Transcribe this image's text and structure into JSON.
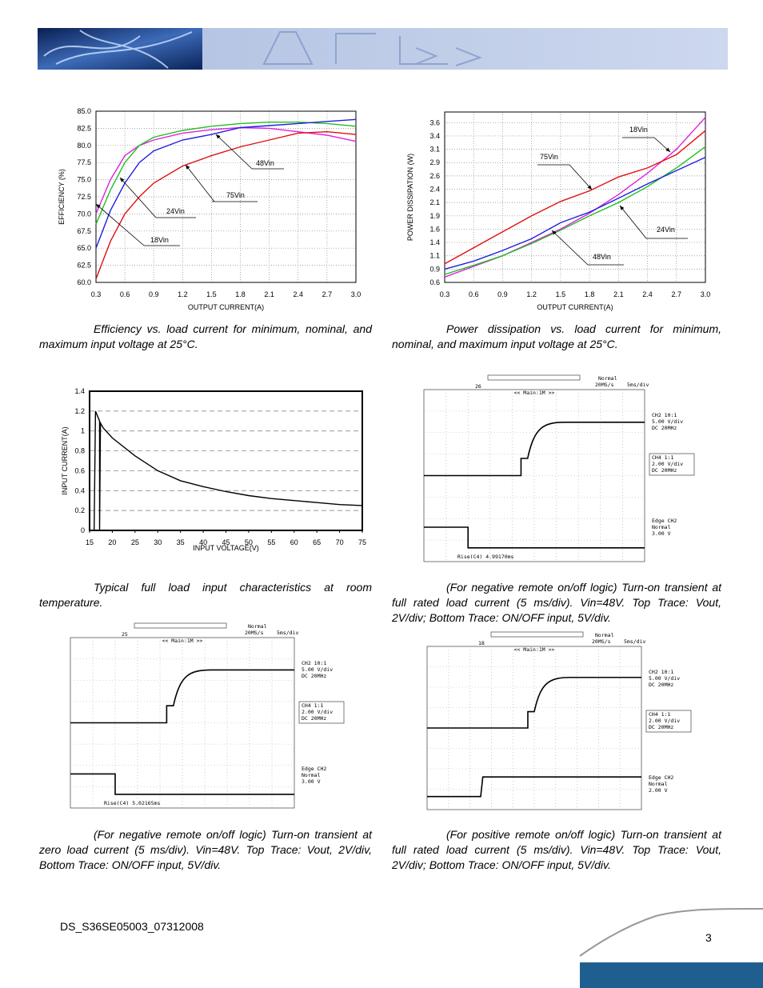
{
  "chart_data": [
    {
      "type": "line",
      "ylabel": "EFFICIENCY (%)",
      "xlabel": "OUTPUT CURRENT(A)",
      "x": [
        0.3,
        0.45,
        0.6,
        0.75,
        0.9,
        1.2,
        1.5,
        1.8,
        2.1,
        2.4,
        2.7,
        3.0
      ],
      "xlim": [
        0.3,
        3.0
      ],
      "xticks": [
        0.3,
        0.6,
        0.9,
        1.2,
        1.5,
        1.8,
        2.1,
        2.4,
        2.7,
        {
          "value": 3,
          "label": "3.0"
        }
      ],
      "ylim": [
        60,
        85
      ],
      "yticks": [
        {
          "value": 60,
          "label": "60.0"
        },
        62.5,
        {
          "value": 65,
          "label": "65.0"
        },
        67.5,
        {
          "value": 70,
          "label": "70.0"
        },
        72.5,
        {
          "value": 75,
          "label": "75.0"
        },
        77.5,
        {
          "value": 80,
          "label": "80.0"
        },
        82.5,
        {
          "value": 85,
          "label": "85.0"
        }
      ],
      "grid": true,
      "series": [
        {
          "name": "18Vin",
          "color": "#e020e0",
          "values": [
            70,
            75,
            78.5,
            80,
            80.8,
            81.8,
            82.3,
            82.6,
            82.5,
            82,
            81.5,
            80.6
          ]
        },
        {
          "name": "24Vin",
          "color": "#20c020",
          "values": [
            68.5,
            73.5,
            77.5,
            80,
            81.2,
            82.2,
            82.8,
            83.2,
            83.4,
            83.4,
            83.2,
            82.8
          ]
        },
        {
          "name": "48Vin",
          "color": "#2020e0",
          "values": [
            65,
            70.5,
            74.5,
            77.5,
            79.2,
            80.8,
            81.6,
            82.6,
            82.9,
            83.2,
            83.5,
            83.8
          ]
        },
        {
          "name": "75Vin",
          "color": "#e01010",
          "values": [
            60.5,
            66,
            70,
            72.5,
            74.5,
            77,
            78.5,
            79.8,
            80.8,
            81.8,
            82,
            81.6
          ]
        }
      ]
    },
    {
      "type": "line",
      "ylabel": "POWER DISSIPATION (W)",
      "xlabel": "OUTPUT CURRENT(A)",
      "x": [
        0.3,
        0.6,
        0.9,
        1.2,
        1.5,
        1.8,
        2.1,
        2.4,
        2.7,
        3.0
      ],
      "xlim": [
        0.3,
        3.0
      ],
      "xticks": [
        0.3,
        0.6,
        0.9,
        1.2,
        1.5,
        1.8,
        2.1,
        2.4,
        2.7,
        {
          "value": 3,
          "label": "3.0"
        }
      ],
      "ylim": [
        0.6,
        3.8
      ],
      "yticks": [
        0.6,
        {
          "value": 0.85,
          "label": "0.9"
        },
        1.1,
        {
          "value": 1.35,
          "label": "1.4"
        },
        1.6,
        {
          "value": 1.85,
          "label": "1.9"
        },
        2.1,
        {
          "value": 2.35,
          "label": "2.4"
        },
        2.6,
        {
          "value": 2.85,
          "label": "2.9"
        },
        3.1,
        {
          "value": 3.35,
          "label": "3.4"
        },
        3.6
      ],
      "grid": true,
      "series": [
        {
          "name": "18Vin",
          "color": "#e020e0",
          "values": [
            0.7,
            0.9,
            1.1,
            1.35,
            1.6,
            1.9,
            2.25,
            2.65,
            3.1,
            3.7
          ]
        },
        {
          "name": "24Vin",
          "color": "#20c020",
          "values": [
            0.75,
            0.92,
            1.1,
            1.33,
            1.58,
            1.85,
            2.1,
            2.4,
            2.75,
            3.15
          ]
        },
        {
          "name": "48Vin",
          "color": "#2020e0",
          "values": [
            0.85,
            1.0,
            1.2,
            1.42,
            1.72,
            1.92,
            2.18,
            2.45,
            2.7,
            2.95
          ]
        },
        {
          "name": "75Vin",
          "color": "#e01010",
          "values": [
            0.95,
            1.25,
            1.55,
            1.85,
            2.12,
            2.32,
            2.58,
            2.75,
            3.0,
            3.45
          ]
        }
      ]
    },
    {
      "type": "line",
      "ylabel": "INPUT CURRENT(A)",
      "xlabel": "INPUT VOLTAGE(V)",
      "x": [
        16,
        16.3,
        17.2,
        17.2,
        17.4,
        18,
        20,
        25,
        30,
        35,
        40,
        45,
        50,
        55,
        60,
        65,
        70,
        75
      ],
      "xlim": [
        15,
        75
      ],
      "xticks": [
        15,
        20,
        25,
        30,
        35,
        40,
        45,
        50,
        55,
        60,
        65,
        70,
        75
      ],
      "ylim": [
        0,
        1.4
      ],
      "yticks": [
        0,
        0.2,
        0.4,
        0.6,
        0.8,
        1,
        1.2,
        1.4
      ],
      "grid": true,
      "series": [
        {
          "color": "#000000",
          "values": [
            0,
            1.2,
            1.1,
            0,
            1.08,
            1.03,
            0.93,
            0.75,
            0.6,
            0.5,
            0.44,
            0.39,
            0.35,
            0.32,
            0.3,
            0.28,
            0.26,
            0.25
          ]
        }
      ]
    }
  ],
  "scopes": [
    {
      "marker": "26",
      "acq": [
        "Normal",
        "20MS/s",
        "5ms/div"
      ],
      "zoom": "<< Main:1M >>",
      "ch2": [
        "CH2  10:1",
        "5.00 V/div",
        "DC    20MHz"
      ],
      "ch4": [
        "CH4  1:1",
        "2.00 V/div",
        "DC    20MHz"
      ],
      "trig": [
        "Edge CH2",
        "Normal",
        "3.00 V"
      ],
      "meas": "Rise(C4)   4.99170ms"
    },
    {
      "marker": "25",
      "acq": [
        "Normal",
        "20MS/s",
        "5ms/div"
      ],
      "zoom": "<< Main:1M >>",
      "ch2": [
        "CH2  10:1",
        "5.00 V/div",
        "DC    20MHz"
      ],
      "ch4": [
        "CH4  1:1",
        "2.00 V/div",
        "DC    20MHz"
      ],
      "trig": [
        "Edge CH2",
        "Normal",
        "3.00 V"
      ],
      "meas": "Rise(C4)   5.02165ms"
    },
    {
      "marker": "18",
      "acq": [
        "Normal",
        "20MS/s",
        "5ms/div"
      ],
      "zoom": "<< Main:1M >>",
      "ch2": [
        "CH2  10:1",
        "5.00 V/div",
        "DC    20MHz"
      ],
      "ch4": [
        "CH4  1:1",
        "2.00 V/div",
        "DC    20MHz"
      ],
      "trig": [
        "Edge CH2",
        "Normal",
        "2.00 V"
      ]
    }
  ],
  "captions": [
    "Efficiency vs. load current for minimum, nominal, and maximum input voltage at 25°C.",
    "Power dissipation vs. load current for minimum, nominal, and maximum input voltage at 25°C.",
    "Typical full load input characteristics at room temperature.",
    "(For negative remote on/off logic) Turn-on transient at full rated load current (5 ms/div). Vin=48V. Top Trace: Vout, 2V/div; Bottom Trace: ON/OFF input, 5V/div.",
    "(For negative remote on/off logic) Turn-on transient at zero load current (5 ms/div). Vin=48V. Top Trace: Vout, 2V/div, Bottom Trace: ON/OFF input, 5V/div.",
    "(For positive remote on/off logic) Turn-on transient at full rated load current (5 ms/div). Vin=48V. Top Trace: Vout, 2V/div; Bottom Trace: ON/OFF input, 5V/div."
  ],
  "footer": {
    "doc_id": "DS_S36SE05003_07312008",
    "page": "3"
  }
}
